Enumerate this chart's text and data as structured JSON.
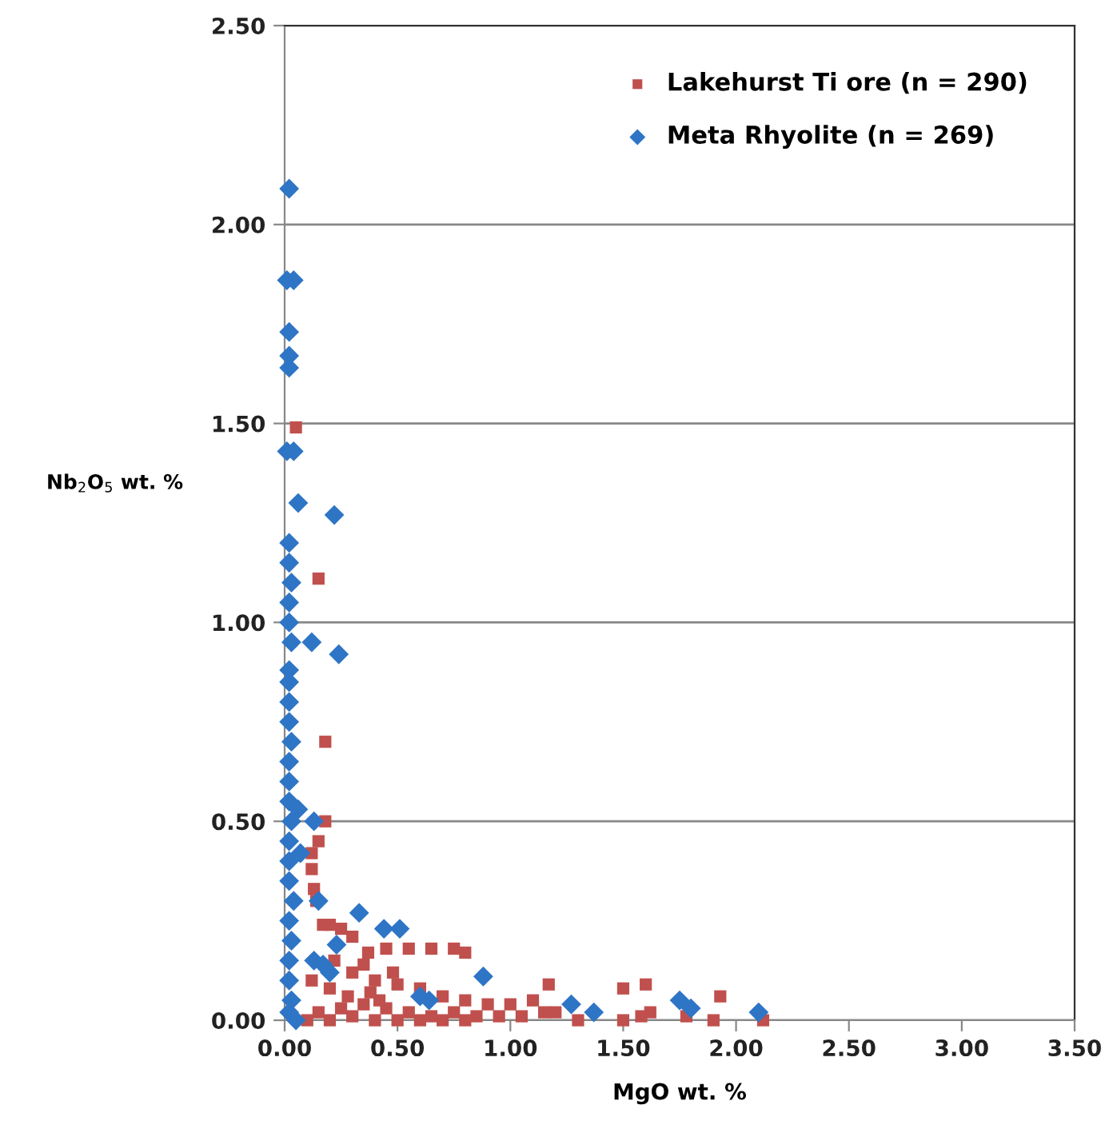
{
  "chart_data": {
    "type": "scatter",
    "xlabel": "MgO wt. %",
    "ylabel": "Nb$_{2}$O$_{5}$ wt. %",
    "xlim": [
      0,
      3.5
    ],
    "ylim": [
      0,
      2.5
    ],
    "xticks": [
      {
        "value": 0,
        "label": "0.00"
      },
      {
        "value": 0.5,
        "label": "0.50"
      },
      {
        "value": 1,
        "label": "1.00"
      },
      {
        "value": 1.5,
        "label": "1.50"
      },
      {
        "value": 2,
        "label": "2.00"
      },
      {
        "value": 2.5,
        "label": "2.50"
      },
      {
        "value": 3,
        "label": "3.00"
      },
      {
        "value": 3.5,
        "label": "3.50"
      }
    ],
    "yticks": [
      {
        "value": 0,
        "label": "0.00"
      },
      {
        "value": 0.5,
        "label": "0.50"
      },
      {
        "value": 1,
        "label": "1.00"
      },
      {
        "value": 1.5,
        "label": "1.50"
      },
      {
        "value": 2,
        "label": "2.00"
      },
      {
        "value": 2.5,
        "label": "2.50"
      }
    ],
    "grid": "y",
    "legend": "top right",
    "series": [
      {
        "name": "Lakehurst Ti ore (n = 290)",
        "color": "#c0504d",
        "marker": "square",
        "x": [
          0.05,
          0.15,
          0.18,
          0.18,
          0.15,
          0.12,
          0.12,
          0.13,
          0.14,
          0.17,
          0.2,
          0.25,
          0.3,
          0.37,
          0.45,
          0.55,
          0.65,
          0.75,
          0.8,
          1.17,
          1.5,
          1.6,
          1.93,
          0.12,
          0.2,
          0.3,
          0.35,
          0.4,
          0.5,
          0.6,
          0.7,
          0.8,
          0.9,
          1.0,
          1.1,
          1.2,
          1.3,
          0.15,
          0.25,
          0.35,
          0.45,
          0.55,
          0.65,
          0.75,
          0.85,
          0.95,
          1.05,
          1.15,
          1.5,
          1.58,
          1.62,
          1.78,
          1.9,
          2.12,
          0.1,
          0.2,
          0.3,
          0.4,
          0.5,
          0.6,
          0.7,
          0.8,
          0.22,
          0.28,
          0.38,
          0.42,
          0.48
        ],
        "values": [
          1.49,
          1.11,
          0.7,
          0.5,
          0.45,
          0.42,
          0.38,
          0.33,
          0.3,
          0.24,
          0.24,
          0.23,
          0.21,
          0.17,
          0.18,
          0.18,
          0.18,
          0.18,
          0.17,
          0.09,
          0.08,
          0.09,
          0.06,
          0.1,
          0.08,
          0.12,
          0.14,
          0.1,
          0.09,
          0.08,
          0.06,
          0.05,
          0.04,
          0.04,
          0.05,
          0.02,
          0.0,
          0.02,
          0.03,
          0.04,
          0.03,
          0.02,
          0.01,
          0.02,
          0.01,
          0.01,
          0.01,
          0.02,
          0.0,
          0.01,
          0.02,
          0.01,
          0.0,
          0.0,
          0.0,
          0.0,
          0.01,
          0.0,
          0.0,
          0.0,
          0.0,
          0.0,
          0.15,
          0.06,
          0.07,
          0.05,
          0.12
        ]
      },
      {
        "name": "Meta Rhyolite (n = 269)",
        "color": "#2e75c6",
        "marker": "diamond",
        "x": [
          0.02,
          0.01,
          0.04,
          0.02,
          0.02,
          0.02,
          0.01,
          0.04,
          0.06,
          0.22,
          0.02,
          0.02,
          0.03,
          0.02,
          0.02,
          0.03,
          0.12,
          0.24,
          0.02,
          0.02,
          0.02,
          0.02,
          0.03,
          0.02,
          0.02,
          0.02,
          0.06,
          0.03,
          0.13,
          0.02,
          0.07,
          0.02,
          0.02,
          0.04,
          0.15,
          0.02,
          0.03,
          0.33,
          0.44,
          0.51,
          0.23,
          0.13,
          0.17,
          0.2,
          0.02,
          0.02,
          0.03,
          0.02,
          0.05,
          0.6,
          0.64,
          0.88,
          1.27,
          1.37,
          1.75,
          1.8,
          2.1
        ],
        "values": [
          2.09,
          1.86,
          1.86,
          1.73,
          1.67,
          1.64,
          1.43,
          1.43,
          1.3,
          1.27,
          1.2,
          1.15,
          1.1,
          1.05,
          1.0,
          0.95,
          0.95,
          0.92,
          0.88,
          0.85,
          0.8,
          0.75,
          0.7,
          0.65,
          0.6,
          0.55,
          0.53,
          0.5,
          0.5,
          0.45,
          0.42,
          0.4,
          0.35,
          0.3,
          0.3,
          0.25,
          0.2,
          0.27,
          0.23,
          0.23,
          0.19,
          0.15,
          0.14,
          0.12,
          0.15,
          0.1,
          0.05,
          0.02,
          0.0,
          0.06,
          0.05,
          0.11,
          0.04,
          0.02,
          0.05,
          0.03,
          0.02
        ]
      }
    ]
  }
}
